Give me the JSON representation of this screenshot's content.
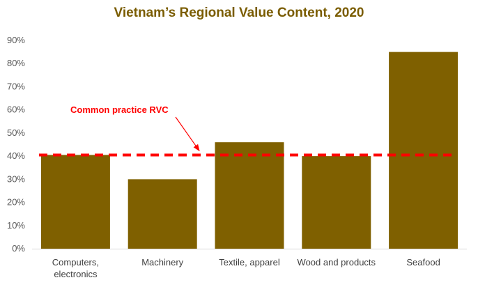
{
  "colors": {
    "title": "#7a5c00",
    "bar": "#7f6000",
    "reference": "#ff0000",
    "axis": "#d9d9d9"
  },
  "chart_data": {
    "type": "bar",
    "title": "Vietnam’s Regional Value Content, 2020",
    "xlabel": "",
    "ylabel": "",
    "ylim": [
      0,
      90
    ],
    "y_ticks": [
      "0%",
      "10%",
      "20%",
      "30%",
      "40%",
      "50%",
      "60%",
      "70%",
      "80%",
      "90%"
    ],
    "grid": false,
    "categories": [
      [
        "Computers,",
        "electronics"
      ],
      [
        "Machinery"
      ],
      [
        "Textile, apparel"
      ],
      [
        "Wood and products"
      ],
      [
        "Seafood"
      ]
    ],
    "values": [
      40.5,
      30,
      46,
      40,
      85
    ],
    "reference_line": {
      "label": "Common practice RVC",
      "value": 40.5,
      "style": "dashed"
    }
  }
}
